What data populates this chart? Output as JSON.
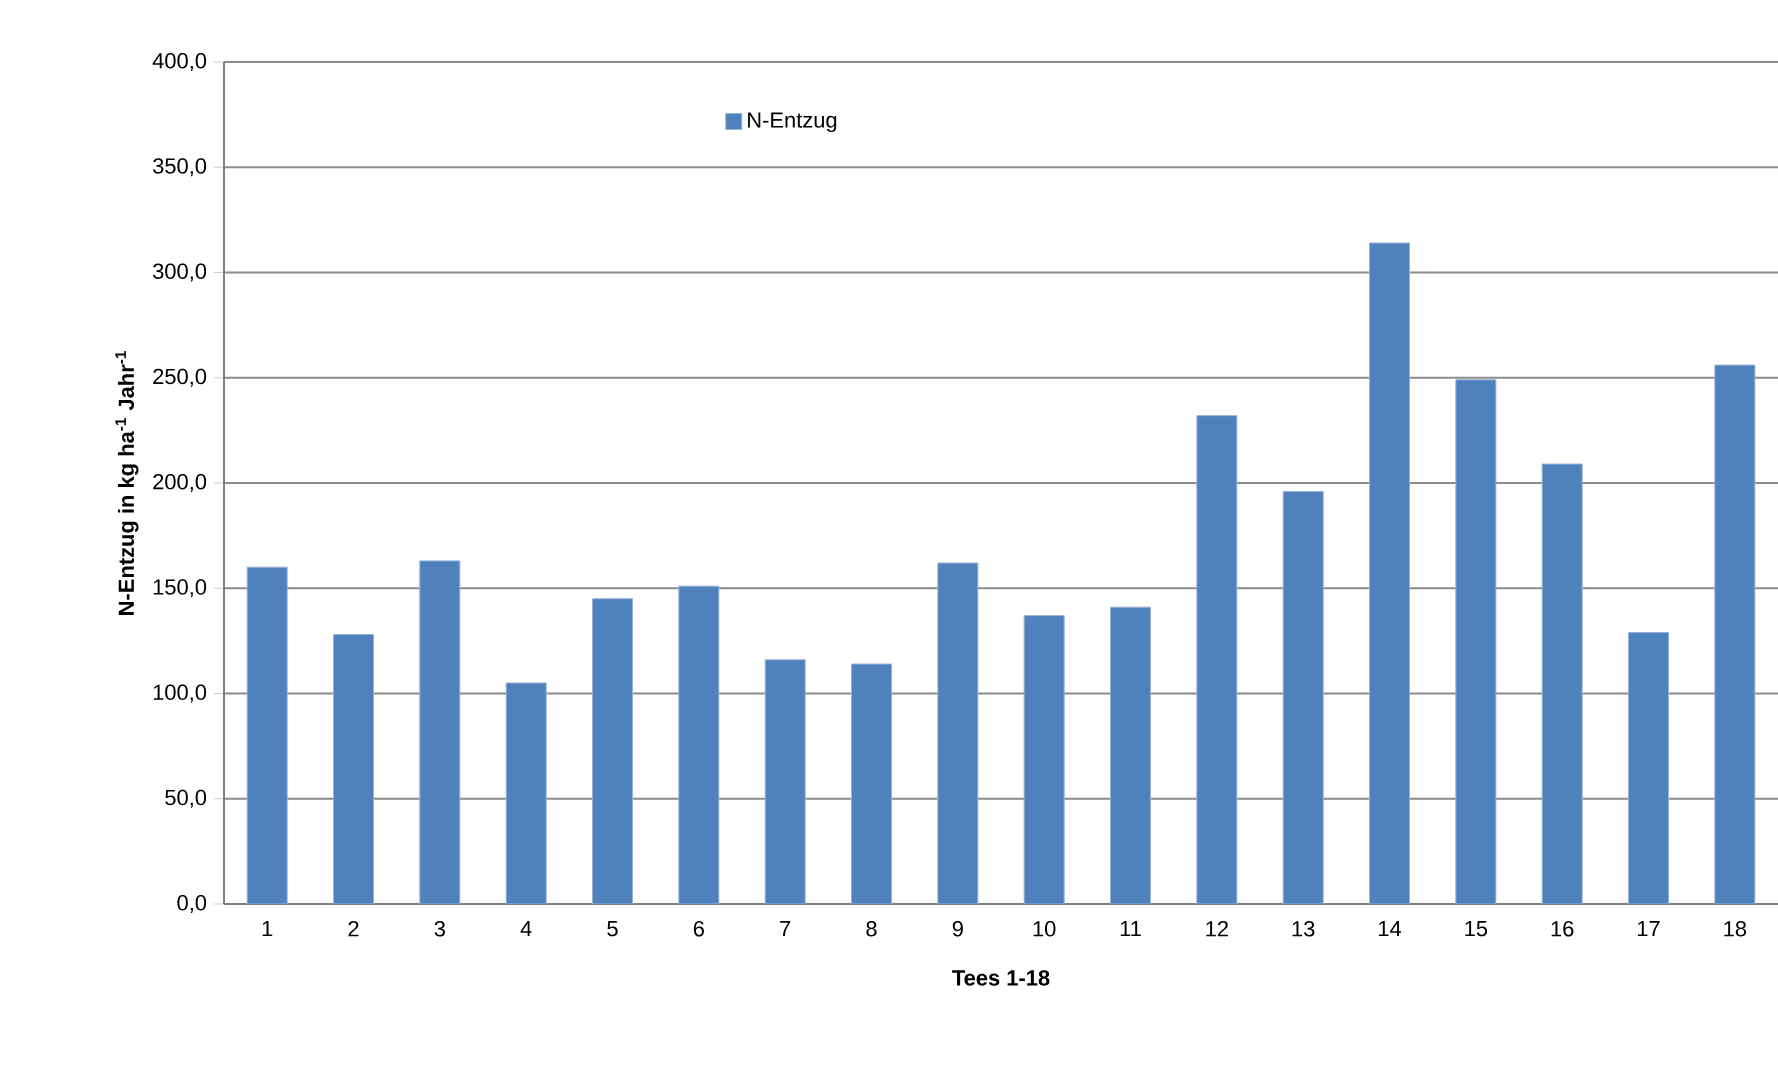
{
  "chart_data": {
    "type": "bar",
    "xlabel": "Tees 1-18",
    "ylabel": "N-Entzug in kg ha$^{-1}$ Jahr$^{-1}$",
    "categories": [
      "1",
      "2",
      "3",
      "4",
      "5",
      "6",
      "7",
      "8",
      "9",
      "10",
      "11",
      "12",
      "13",
      "14",
      "15",
      "16",
      "17",
      "18"
    ],
    "series": [
      {
        "name": "N-Entzug",
        "color": "#4f81bd",
        "values": [
          160,
          128,
          163,
          105,
          145,
          151,
          116,
          114,
          162,
          137,
          141,
          232,
          196,
          314,
          249,
          209,
          129,
          256
        ]
      }
    ],
    "ylim": [
      0,
      400
    ],
    "yticks": [
      {
        "value": 0,
        "label": "0,0"
      },
      {
        "value": 50,
        "label": "50,0"
      },
      {
        "value": 100,
        "label": "100,0"
      },
      {
        "value": 150,
        "label": "150,0"
      },
      {
        "value": 200,
        "label": "200,0"
      },
      {
        "value": 250,
        "label": "250,0"
      },
      {
        "value": 300,
        "label": "300,0"
      },
      {
        "value": 350,
        "label": "350,0"
      },
      {
        "value": 400,
        "label": "400,0"
      }
    ],
    "grid": "y",
    "legend": "top"
  }
}
